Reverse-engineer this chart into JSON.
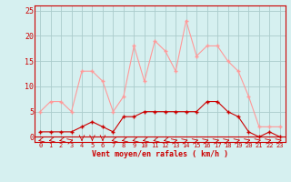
{
  "hours": [
    0,
    1,
    2,
    3,
    4,
    5,
    6,
    7,
    8,
    9,
    10,
    11,
    12,
    13,
    14,
    15,
    16,
    17,
    18,
    19,
    20,
    21,
    22,
    23
  ],
  "wind_mean": [
    1,
    1,
    1,
    1,
    2,
    3,
    2,
    1,
    4,
    4,
    5,
    5,
    5,
    5,
    5,
    5,
    7,
    7,
    5,
    4,
    1,
    0,
    1,
    0
  ],
  "wind_gust": [
    5,
    7,
    7,
    5,
    13,
    13,
    11,
    5,
    8,
    18,
    11,
    19,
    17,
    13,
    23,
    16,
    18,
    18,
    15,
    13,
    8,
    2,
    2,
    2
  ],
  "bg_color": "#d6f0f0",
  "grid_color": "#aacccc",
  "line_mean_color": "#cc0000",
  "line_gust_color": "#ff9999",
  "xlabel": "Vent moyen/en rafales ( km/h )",
  "ylabel_ticks": [
    0,
    5,
    10,
    15,
    20,
    25
  ],
  "ylim": [
    -1,
    26
  ],
  "xlim": [
    -0.5,
    23.5
  ]
}
